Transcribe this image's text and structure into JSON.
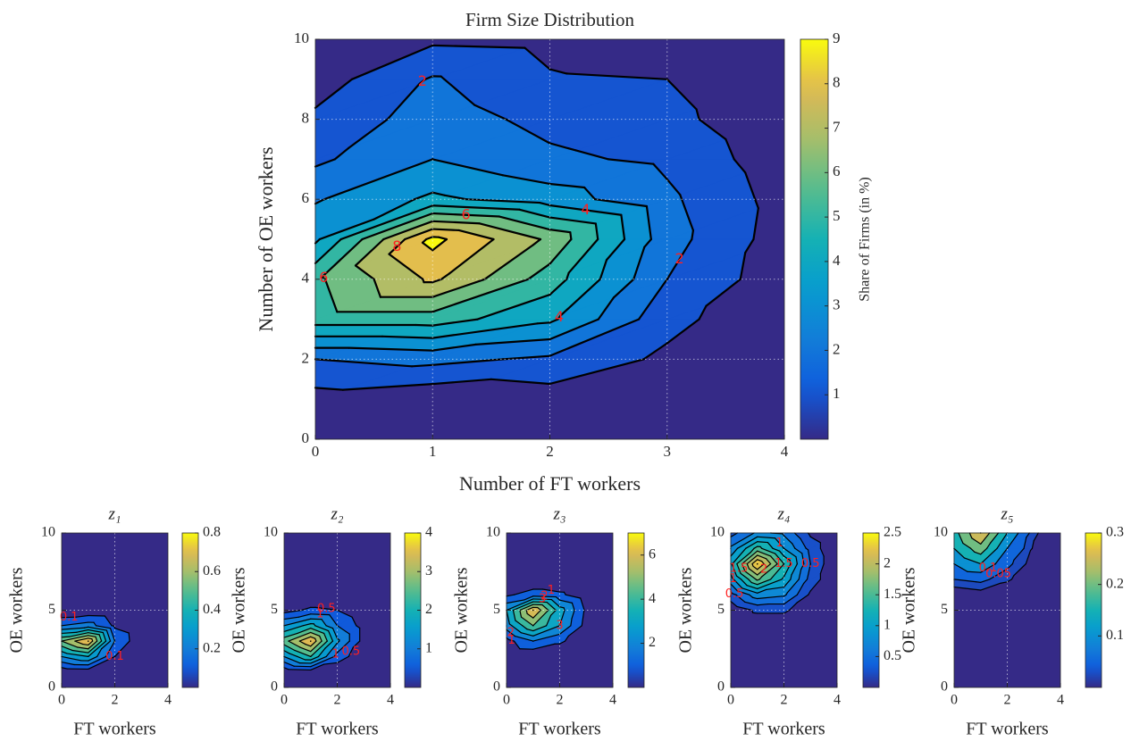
{
  "chart_data": [
    {
      "type": "contour",
      "title": "Firm Size Distribution",
      "x_label": "Number of FT workers",
      "y_label": "Number of OE workers",
      "colorbar_label": "Share of Firms (in %)",
      "x": [
        0,
        1,
        2,
        3,
        4
      ],
      "y": [
        0,
        1,
        2,
        3,
        4,
        5,
        6,
        7,
        8,
        9,
        10
      ],
      "z": [
        [
          0,
          0,
          0,
          0,
          0
        ],
        [
          0.6,
          0.2,
          0.5,
          0.2,
          0
        ],
        [
          2.0,
          2.3,
          1.8,
          0.8,
          0.1
        ],
        [
          5.5,
          5.5,
          4.2,
          1.3,
          0.2
        ],
        [
          5.8,
          8.2,
          5.5,
          2.0,
          0.4
        ],
        [
          3.8,
          9.3,
          6.8,
          2.4,
          0.5
        ],
        [
          2.9,
          4.2,
          3.5,
          2.2,
          0.6
        ],
        [
          1.8,
          3.0,
          2.2,
          1.8,
          0.4
        ],
        [
          1.2,
          2.5,
          1.7,
          1.3,
          0.2
        ],
        [
          0.5,
          2.1,
          1.1,
          1.0,
          0.1
        ],
        [
          0.3,
          0.8,
          0.7,
          0.4,
          0
        ]
      ],
      "xlim": [
        0,
        4
      ],
      "ylim": [
        0,
        10
      ],
      "xticks": [
        0,
        1,
        2,
        3,
        4
      ],
      "yticks": [
        0,
        2,
        4,
        6,
        8,
        10
      ],
      "clim": [
        0,
        9
      ],
      "cticks": [
        1,
        2,
        3,
        4,
        5,
        6,
        7,
        8,
        9
      ],
      "levels": [
        1,
        2,
        3,
        4,
        5,
        6,
        7,
        8,
        9
      ],
      "contour_labels": [
        2,
        4,
        6,
        8
      ],
      "grid": true
    },
    {
      "type": "contour",
      "title": "z₁",
      "x_label": "FT workers",
      "y_label": "OE workers",
      "x": [
        0,
        1,
        2,
        3,
        4
      ],
      "y": [
        0,
        1,
        2,
        3,
        4,
        5,
        6,
        7,
        8,
        9,
        10
      ],
      "z": [
        [
          0,
          0,
          0,
          0,
          0
        ],
        [
          0.02,
          0.03,
          0.01,
          0,
          0
        ],
        [
          0.3,
          0.4,
          0.1,
          0,
          0
        ],
        [
          0.6,
          0.8,
          0.2,
          0.02,
          0
        ],
        [
          0.2,
          0.25,
          0.08,
          0.01,
          0
        ],
        [
          0.01,
          0.02,
          0.01,
          0,
          0
        ],
        [
          0,
          0,
          0,
          0,
          0
        ],
        [
          0,
          0,
          0,
          0,
          0
        ],
        [
          0,
          0,
          0,
          0,
          0
        ],
        [
          0,
          0,
          0,
          0,
          0
        ],
        [
          0,
          0,
          0,
          0,
          0
        ]
      ],
      "xlim": [
        0,
        4
      ],
      "ylim": [
        0,
        10
      ],
      "xticks": [
        0,
        2,
        4
      ],
      "yticks": [
        0,
        5,
        10
      ],
      "clim": [
        0,
        0.8
      ],
      "cticks": [
        0.2,
        0.4,
        0.6,
        0.8
      ],
      "levels": [
        0.1,
        0.2,
        0.3,
        0.4,
        0.5,
        0.6,
        0.7,
        0.8
      ],
      "contour_labels": [
        0.1
      ],
      "grid": true
    },
    {
      "type": "contour",
      "title": "z₂",
      "x_label": "FT workers",
      "y_label": "OE workers",
      "x": [
        0,
        1,
        2,
        3,
        4
      ],
      "y": [
        0,
        1,
        2,
        3,
        4,
        5,
        6,
        7,
        8,
        9,
        10
      ],
      "z": [
        [
          0,
          0,
          0,
          0,
          0
        ],
        [
          0.1,
          0.2,
          0.05,
          0,
          0
        ],
        [
          1.5,
          2.5,
          0.8,
          0.1,
          0
        ],
        [
          2.8,
          4,
          1.6,
          0.3,
          0
        ],
        [
          1.5,
          2.2,
          1.0,
          0.3,
          0
        ],
        [
          0.3,
          0.6,
          0.5,
          0.1,
          0
        ],
        [
          0.02,
          0.05,
          0.05,
          0,
          0
        ],
        [
          0,
          0,
          0,
          0,
          0
        ],
        [
          0,
          0,
          0,
          0,
          0
        ],
        [
          0,
          0,
          0,
          0,
          0
        ],
        [
          0,
          0,
          0,
          0,
          0
        ]
      ],
      "xlim": [
        0,
        4
      ],
      "ylim": [
        0,
        10
      ],
      "xticks": [
        0,
        2,
        4
      ],
      "yticks": [
        0,
        5,
        10
      ],
      "clim": [
        0,
        4
      ],
      "cticks": [
        1,
        2,
        3,
        4
      ],
      "levels": [
        0.5,
        1,
        1.5,
        2,
        2.5,
        3,
        3.5,
        4
      ],
      "contour_labels": [
        0.5,
        1
      ],
      "grid": true
    },
    {
      "type": "contour",
      "title": "z₃",
      "x_label": "FT workers",
      "y_label": "OE workers",
      "x": [
        0,
        1,
        2,
        3,
        4
      ],
      "y": [
        0,
        1,
        2,
        3,
        4,
        5,
        6,
        7,
        8,
        9,
        10
      ],
      "z": [
        [
          0,
          0,
          0,
          0,
          0
        ],
        [
          0,
          0,
          0,
          0,
          0
        ],
        [
          0,
          0.1,
          0.05,
          0,
          0
        ],
        [
          0.6,
          2,
          1.2,
          0.2,
          0
        ],
        [
          2.5,
          5,
          3,
          0.6,
          0
        ],
        [
          3,
          7,
          3.5,
          0.8,
          0
        ],
        [
          0.8,
          1.5,
          1.2,
          0.3,
          0
        ],
        [
          0,
          0.1,
          0.1,
          0,
          0
        ],
        [
          0,
          0,
          0,
          0,
          0
        ],
        [
          0,
          0,
          0,
          0,
          0
        ],
        [
          0,
          0,
          0,
          0,
          0
        ]
      ],
      "xlim": [
        0,
        4
      ],
      "ylim": [
        0,
        10
      ],
      "xticks": [
        0,
        2,
        4
      ],
      "yticks": [
        0,
        5,
        10
      ],
      "clim": [
        0,
        7
      ],
      "cticks": [
        2,
        4,
        6
      ],
      "levels": [
        1,
        2,
        3,
        4,
        5,
        6,
        7
      ],
      "contour_labels": [
        1,
        2,
        3
      ],
      "grid": true
    },
    {
      "type": "contour",
      "title": "z₄",
      "x_label": "FT workers",
      "y_label": "OE workers",
      "x": [
        0,
        1,
        2,
        3,
        4
      ],
      "y": [
        0,
        1,
        2,
        3,
        4,
        5,
        6,
        7,
        8,
        9,
        10
      ],
      "z": [
        [
          0,
          0,
          0,
          0,
          0
        ],
        [
          0,
          0,
          0,
          0,
          0
        ],
        [
          0,
          0,
          0,
          0,
          0
        ],
        [
          0,
          0,
          0,
          0,
          0
        ],
        [
          0,
          0.05,
          0.05,
          0,
          0
        ],
        [
          0.05,
          0.3,
          0.3,
          0.05,
          0
        ],
        [
          0.4,
          0.9,
          0.8,
          0.2,
          0
        ],
        [
          0.9,
          1.8,
          1.2,
          0.4,
          0
        ],
        [
          1.2,
          2.5,
          1.5,
          0.5,
          0
        ],
        [
          0.8,
          1.6,
          1.0,
          0.4,
          0
        ],
        [
          0.4,
          0.8,
          0.7,
          0.2,
          0
        ]
      ],
      "xlim": [
        0,
        4
      ],
      "ylim": [
        0,
        10
      ],
      "xticks": [
        0,
        2,
        4
      ],
      "yticks": [
        0,
        5,
        10
      ],
      "clim": [
        0,
        2.5
      ],
      "cticks": [
        0.5,
        1,
        1.5,
        2,
        2.5
      ],
      "levels": [
        0.25,
        0.5,
        0.75,
        1,
        1.25,
        1.5,
        1.75,
        2,
        2.25,
        2.5
      ],
      "contour_labels": [
        0.5,
        1,
        1.5,
        2
      ],
      "grid": true
    },
    {
      "type": "contour",
      "title": "z₅",
      "x_label": "FT workers",
      "y_label": "OE workers",
      "x": [
        0,
        1,
        2,
        3,
        4
      ],
      "y": [
        0,
        1,
        2,
        3,
        4,
        5,
        6,
        7,
        8,
        9,
        10
      ],
      "z": [
        [
          0,
          0,
          0,
          0,
          0
        ],
        [
          0,
          0,
          0,
          0,
          0
        ],
        [
          0,
          0,
          0,
          0,
          0
        ],
        [
          0,
          0,
          0,
          0,
          0
        ],
        [
          0,
          0,
          0,
          0,
          0
        ],
        [
          0,
          0,
          0,
          0,
          0
        ],
        [
          0,
          0.01,
          0,
          0,
          0
        ],
        [
          0.05,
          0.06,
          0.03,
          0,
          0
        ],
        [
          0.1,
          0.15,
          0.06,
          0.01,
          0
        ],
        [
          0.15,
          0.23,
          0.1,
          0.02,
          0
        ],
        [
          0.18,
          0.3,
          0.15,
          0.03,
          0
        ]
      ],
      "xlim": [
        0,
        4
      ],
      "ylim": [
        0,
        10
      ],
      "xticks": [
        0,
        2,
        4
      ],
      "yticks": [
        0,
        5,
        10
      ],
      "clim": [
        0,
        0.3
      ],
      "cticks": [
        0.1,
        0.2,
        0.3
      ],
      "levels": [
        0.025,
        0.05,
        0.1,
        0.15,
        0.2,
        0.25,
        0.3
      ],
      "contour_labels": [
        0.05,
        0.1
      ],
      "grid": true
    }
  ]
}
